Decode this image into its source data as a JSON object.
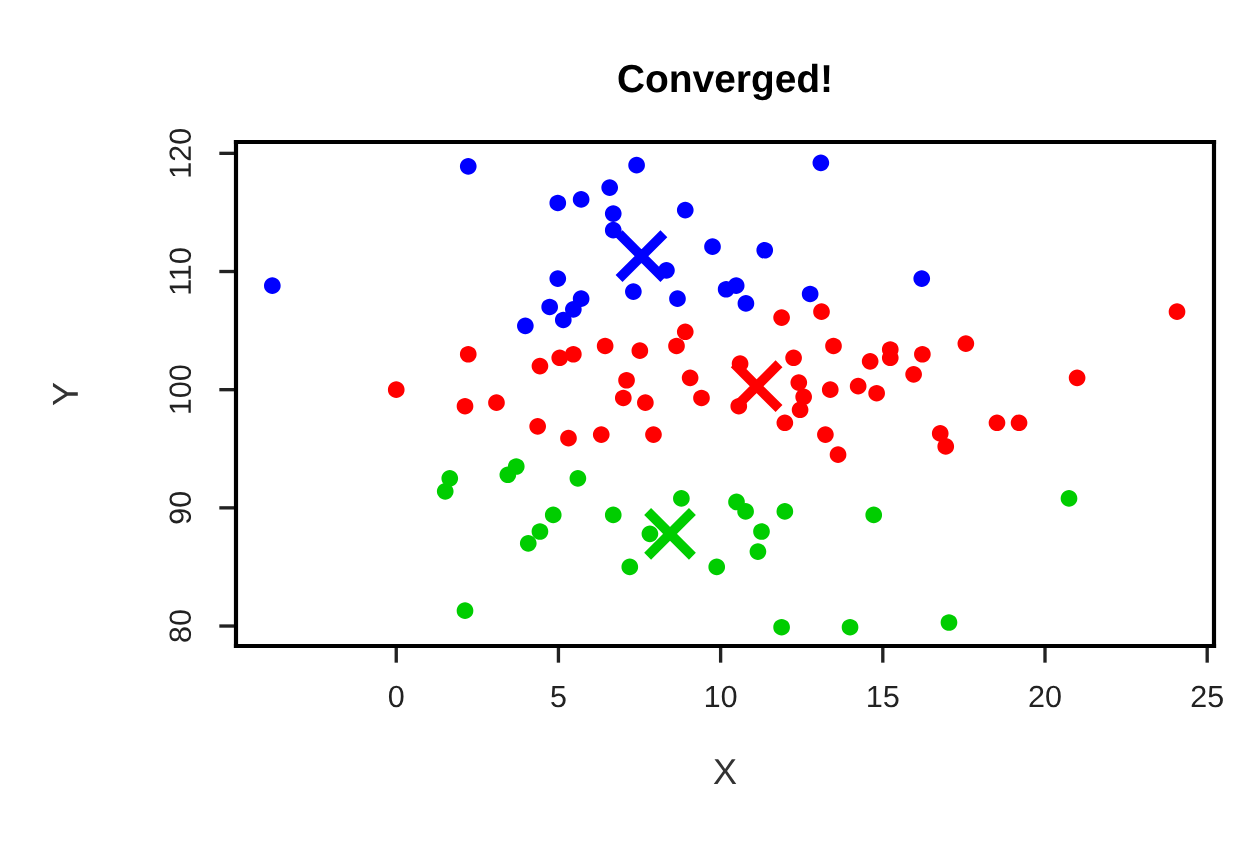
{
  "chart_data": {
    "type": "scatter",
    "title": "Converged!",
    "xlabel": "X",
    "ylabel": "Y",
    "xlim": [
      -4.94,
      25.21
    ],
    "ylim": [
      78.31,
      120.96
    ],
    "xticks": [
      0,
      5,
      10,
      15,
      20,
      25
    ],
    "yticks": [
      80,
      90,
      100,
      110,
      120
    ],
    "grid": false,
    "legend": false,
    "marker": "circle",
    "series": [
      {
        "color": "#0000ff",
        "x": [
          -3.82,
          2.22,
          4.98,
          5.7,
          6.58,
          7.41,
          6.69,
          6.69,
          8.91,
          9.75,
          8.33,
          7.31,
          8.67,
          4.98,
          4.73,
          5.7,
          5.15,
          3.98,
          5.46,
          10.17,
          10.48,
          10.78,
          13.09,
          11.36,
          12.76,
          16.2
        ],
        "values": [
          108.8,
          118.9,
          115.8,
          116.1,
          117.1,
          119.0,
          114.9,
          113.5,
          115.2,
          112.1,
          110.1,
          108.3,
          107.7,
          109.4,
          107.0,
          107.7,
          105.9,
          105.4,
          106.8,
          108.5,
          108.8,
          107.3,
          119.2,
          111.8,
          108.1,
          109.4
        ]
      },
      {
        "color": "#ff0000",
        "x": [
          2.22,
          0.0,
          4.43,
          5.04,
          5.46,
          6.44,
          7.51,
          8.64,
          8.91,
          9.06,
          7.1,
          10.6,
          2.12,
          3.09,
          4.36,
          5.31,
          6.32,
          7.0,
          7.68,
          7.93,
          9.41,
          10.56,
          11.88,
          13.11,
          24.07,
          13.48,
          12.25,
          14.61,
          15.23,
          15.23,
          16.22,
          17.56,
          15.95,
          20.99,
          12.41,
          12.56,
          12.45,
          11.98,
          13.38,
          14.24,
          14.81,
          13.23,
          13.62,
          16.77,
          16.94,
          18.52,
          19.2
        ],
        "values": [
          103.0,
          100.0,
          102.0,
          102.7,
          103.0,
          103.7,
          103.3,
          103.7,
          104.9,
          101.0,
          100.8,
          102.2,
          98.6,
          98.9,
          96.9,
          95.9,
          96.2,
          99.3,
          98.9,
          96.2,
          99.3,
          98.6,
          106.1,
          106.6,
          106.6,
          103.7,
          102.7,
          102.4,
          103.4,
          102.7,
          103.0,
          103.9,
          101.3,
          101.0,
          100.6,
          99.4,
          98.3,
          97.2,
          100.0,
          100.3,
          99.7,
          96.2,
          94.5,
          96.3,
          95.2,
          97.2,
          97.2
        ]
      },
      {
        "color": "#00cd00",
        "x": [
          1.65,
          1.51,
          3.7,
          3.44,
          5.6,
          4.84,
          4.43,
          4.07,
          6.69,
          7.2,
          7.82,
          8.79,
          9.88,
          2.12,
          10.49,
          10.77,
          11.98,
          11.26,
          11.15,
          14.72,
          20.74,
          11.88,
          13.99,
          17.04
        ],
        "values": [
          92.5,
          91.4,
          93.5,
          92.8,
          92.5,
          89.4,
          88.0,
          87.0,
          89.4,
          85.0,
          87.8,
          90.8,
          85.0,
          81.3,
          90.5,
          89.7,
          89.7,
          88.0,
          86.3,
          89.4,
          90.8,
          79.9,
          79.9,
          80.3
        ]
      },
      {
        "color": "#0000ff",
        "marker": "cross",
        "x": [
          7.56
        ],
        "values": [
          111.3
        ]
      },
      {
        "color": "#ff0000",
        "marker": "cross",
        "x": [
          11.11
        ],
        "values": [
          100.3
        ]
      },
      {
        "color": "#00cd00",
        "marker": "cross",
        "x": [
          8.44
        ],
        "values": [
          87.8
        ]
      }
    ]
  }
}
